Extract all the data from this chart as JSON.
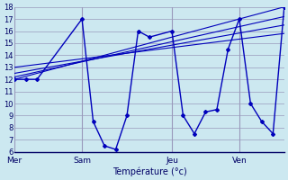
{
  "xlabel": "Température (°c)",
  "bg_color": "#cce8f0",
  "grid_color": "#9999bb",
  "line_color": "#0000bb",
  "ylim": [
    6,
    18
  ],
  "yticks": [
    6,
    7,
    8,
    9,
    10,
    11,
    12,
    13,
    14,
    15,
    16,
    17,
    18
  ],
  "xlim": [
    0,
    24
  ],
  "day_labels": [
    "Mer",
    "Sam",
    "Jeu",
    "Ven"
  ],
  "day_positions": [
    0,
    6,
    14,
    20
  ],
  "vline_positions": [
    0,
    6,
    14,
    20
  ],
  "main_x": [
    0,
    1,
    2,
    6,
    7,
    8,
    9,
    10,
    11,
    12,
    14,
    15,
    16,
    17,
    18,
    19,
    20,
    21,
    22,
    23,
    24
  ],
  "main_y": [
    12,
    12,
    12,
    17,
    8.5,
    6.5,
    6.2,
    9.0,
    16.0,
    15.5,
    16.0,
    9.0,
    7.5,
    9.3,
    9.5,
    14.5,
    17.0,
    10.0,
    8.5,
    7.5,
    18.0
  ],
  "trend_lines": [
    {
      "x": [
        0,
        24
      ],
      "y": [
        12.0,
        18.0
      ]
    },
    {
      "x": [
        0,
        24
      ],
      "y": [
        12.2,
        17.2
      ]
    },
    {
      "x": [
        0,
        24
      ],
      "y": [
        12.5,
        16.5
      ]
    },
    {
      "x": [
        0,
        24
      ],
      "y": [
        13.0,
        15.8
      ]
    }
  ],
  "xlabel_fontsize": 7,
  "ytick_fontsize": 6,
  "xtick_fontsize": 6.5
}
